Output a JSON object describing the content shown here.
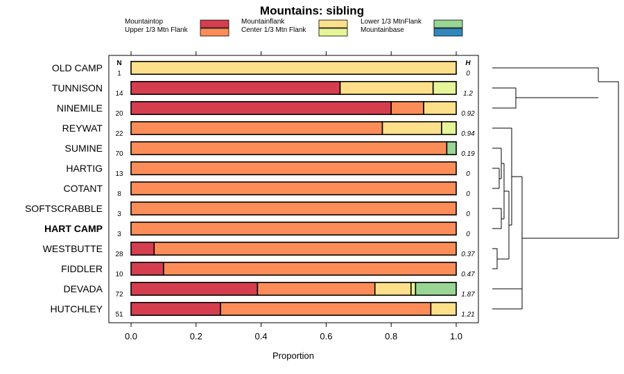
{
  "chart_data": {
    "type": "bar",
    "subtype": "stacked-horizontal-proportion",
    "title": "Mountains: sibling",
    "xlabel": "Proportion",
    "xlim": [
      0,
      1
    ],
    "xticks": [
      "0.0",
      "0.2",
      "0.4",
      "0.6",
      "0.8",
      "1.0"
    ],
    "n_header": "N",
    "h_header": "H",
    "highlighted_row": "HART CAMP",
    "legend": [
      {
        "name": "Mountaintop",
        "color": "#d53e4f"
      },
      {
        "name": "Upper 1/3 Mtn Flank",
        "color": "#fc8d59"
      },
      {
        "name": "Mountainflank",
        "color": "#fee08b"
      },
      {
        "name": "Center 1/3 Mtn Flank",
        "color": "#e6f598"
      },
      {
        "name": "Lower 1/3 MtnFlank",
        "color": "#99d594"
      },
      {
        "name": "Mountainbase",
        "color": "#3288bd"
      }
    ],
    "series_order": [
      "Mountaintop",
      "Upper 1/3 Mtn Flank",
      "Mountainflank",
      "Center 1/3 Mtn Flank",
      "Lower 1/3 MtnFlank",
      "Mountainbase"
    ],
    "rows": [
      {
        "name": "OLD CAMP",
        "n": "1",
        "h": "0",
        "values": [
          0,
          0,
          1.0,
          0,
          0,
          0
        ]
      },
      {
        "name": "TUNNISON",
        "n": "14",
        "h": "1.2",
        "values": [
          0.643,
          0,
          0.286,
          0.071,
          0,
          0
        ]
      },
      {
        "name": "NINEMILE",
        "n": "20",
        "h": "0.92",
        "values": [
          0.8,
          0.1,
          0.1,
          0,
          0,
          0
        ]
      },
      {
        "name": "REYWAT",
        "n": "22",
        "h": "0.94",
        "values": [
          0,
          0.773,
          0.182,
          0.045,
          0,
          0
        ]
      },
      {
        "name": "SUMINE",
        "n": "70",
        "h": "0.19",
        "values": [
          0,
          0.971,
          0,
          0,
          0.029,
          0
        ]
      },
      {
        "name": "HARTIG",
        "n": "13",
        "h": "0",
        "values": [
          0,
          1.0,
          0,
          0,
          0,
          0
        ]
      },
      {
        "name": "COTANT",
        "n": "8",
        "h": "0",
        "values": [
          0,
          1.0,
          0,
          0,
          0,
          0
        ]
      },
      {
        "name": "SOFTSCRABBLE",
        "n": "3",
        "h": "0",
        "values": [
          0,
          1.0,
          0,
          0,
          0,
          0
        ]
      },
      {
        "name": "HART CAMP",
        "n": "3",
        "h": "0",
        "values": [
          0,
          1.0,
          0,
          0,
          0,
          0
        ]
      },
      {
        "name": "WESTBUTTE",
        "n": "28",
        "h": "0.37",
        "values": [
          0.071,
          0.929,
          0,
          0,
          0,
          0
        ]
      },
      {
        "name": "FIDDLER",
        "n": "10",
        "h": "0.47",
        "values": [
          0.1,
          0.9,
          0,
          0,
          0,
          0
        ]
      },
      {
        "name": "DEVADA",
        "n": "72",
        "h": "1.87",
        "values": [
          0.389,
          0.361,
          0.111,
          0.014,
          0.125,
          0
        ]
      },
      {
        "name": "HUTCHLEY",
        "n": "51",
        "h": "1.21",
        "values": [
          0.275,
          0.647,
          0.078,
          0,
          0,
          0
        ]
      }
    ],
    "dendrogram": "hierarchical clustering of the 13 rows (drawn to the right of the panel)"
  }
}
